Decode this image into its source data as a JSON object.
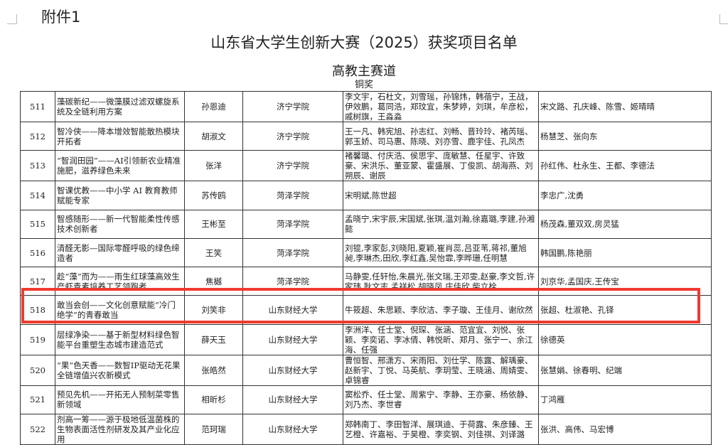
{
  "header": {
    "attachment": "附件1",
    "title": "山东省大学生创新大赛（2025）获奖项目名单",
    "track": "高教主赛道",
    "award_level": "铜奖"
  },
  "highlight_color": "#f03a30",
  "highlighted_row": "518",
  "rows": [
    {
      "no": "511",
      "project": "藻碳新纪——微藻膜过滤双螺旋系统及全链利用方案",
      "leader": "孙恩迪",
      "school": "济宁学院",
      "members": "李文宇，石杜文，刘雪瑶，孙锦炜，韩蓓宁，王战，伊效鹏，葛同浩，郑玟宜，朱梦婷，刘琪，牟彦松，戚树旗，王淼淼",
      "advisors": "宋文路、孔庆峰、陈雪、姬晴晴"
    },
    {
      "no": "512",
      "project": "智冷侠——降本增效智能散热模块开拓者",
      "leader": "胡淑文",
      "school": "济宁学院",
      "members": "王一凡、韩宪旭、孙志红、刘畅、晋玲玲、褚芮瑶、郭玉娇、司马惠、陈晓、刘亦雪、鹿宇佳、孔凤杰",
      "advisors": "杨慧芝、张向东"
    },
    {
      "no": "513",
      "project": "“智润田园”——AI引领新农业精准施肥，滋养绿色未来",
      "leader": "张洋",
      "school": "济宁学院",
      "members": "褚馨璐、付庆浩、侯思宇、庞敏慧、任星宇、许致豪、宋洪乐、董亚蒙、霍盛展、丁俊凯、胡海燕、刘朔辰、谢辰",
      "advisors": "孙红伟、杜永生、王都、李德法"
    },
    {
      "no": "514",
      "project": "智课优教——中小学 AI 教育教师赋能专家",
      "leader": "苏传鸥",
      "school": "菏泽学院",
      "members": "宋明斌,陈世超",
      "advisors": "李忠广,沈勇"
    },
    {
      "no": "515",
      "project": "智感随形——新一代智能柔性传感技术创新者",
      "leader": "王彬至",
      "school": "菏泽学院",
      "members": "孟晓宁,宋宇辰,宋国斌,张琪,温刘瀚,徐嘉璐,李建,孙湘懿",
      "advisors": "杨茂森,董双双,房灵猛"
    },
    {
      "no": "516",
      "project": "清醛无影—国际零醛呼吸的绿色缔造者",
      "leader": "王笑",
      "school": "菏泽学院",
      "members": "刘锟,李家彭,刘晓阳,夏颖,崔肖蕊,吕亚苇,蒋祁,董旭昶,李琳杰,田欣,李红鑫,吴怡霏,李晔珊,任明慧",
      "advisors": "韩国鹏,陈艳丽"
    },
    {
      "no": "517",
      "project": "趁“藻”而为——雨生红球藻高效生产虾青素培养工艺领跑者",
      "leader": "焦樾",
      "school": "菏泽学院",
      "members": "马静雯,任轩怡,朱晨光,张文瑞,王邓雯,赵豪,李文哲,许家玮,耿文志,孟祥松,胡晓凤,庄佳欣,柴立栓",
      "advisors": "刘京华,孟国庆,王传宝"
    },
    {
      "no": "518",
      "project": "敢当会创——文化创意赋能“冷门绝学”的青春敢当",
      "leader": "刘笑非",
      "school": "山东财经大学",
      "members": "牛筱超、朱思颖、李欣洁、李子璇、王佳月、谢欣然",
      "advisors": "张超、杜淑艳、孔铎"
    },
    {
      "no": "519",
      "project": "层绿净染——基于新型材料绿色智能平台重塑生态城市建造范式",
      "leader": "薛天玉",
      "school": "山东财经大学",
      "members": "李洲洋、任士堂、倪琛、张涵、范宜宜、刘悦、张颖、李奕诺、李冰倩、韩悦昕、郑月、张宁一、余江海、任强",
      "advisors": "徐德英"
    },
    {
      "no": "520",
      "project": "“果”色天香——数智IP驱动无花果全链增值兴农新模式",
      "leader": "张皓然",
      "school": "山东财经大学",
      "members": "曹恒智、邢潇方、宋雨阳、刘仕学、陈露、解瑀豪、赵新宇、丁悦、马英航、李玥莹、王晓涵、周婧雯、卓锦睿",
      "advisors": "张慧娟、徐春明、纪端"
    },
    {
      "no": "521",
      "project": "预见先机——开拓无人预制菜零售新领域",
      "leader": "相昕杉",
      "school": "山东财经大学",
      "members": "窦松乔、任士堂、周紫宁、李静、王亦豪、杨依静、刘乃杰、李世睿",
      "advisors": "丁鸿雁"
    },
    {
      "no": "522",
      "project": "剂高一筹——源于极地低温菌株的生物表面活性剂研发及其产业化应用",
      "leader": "范珂瑞",
      "school": "山东财经大学",
      "members": "郑韩南丁、李田智洋、展琪迪、于荷露、朱彦臻、王艺橙、许嘉裕、于昊橙、李奕钢、刘佳祺、刘译潞",
      "advisors": "张洪、高伟、马宏博"
    }
  ]
}
